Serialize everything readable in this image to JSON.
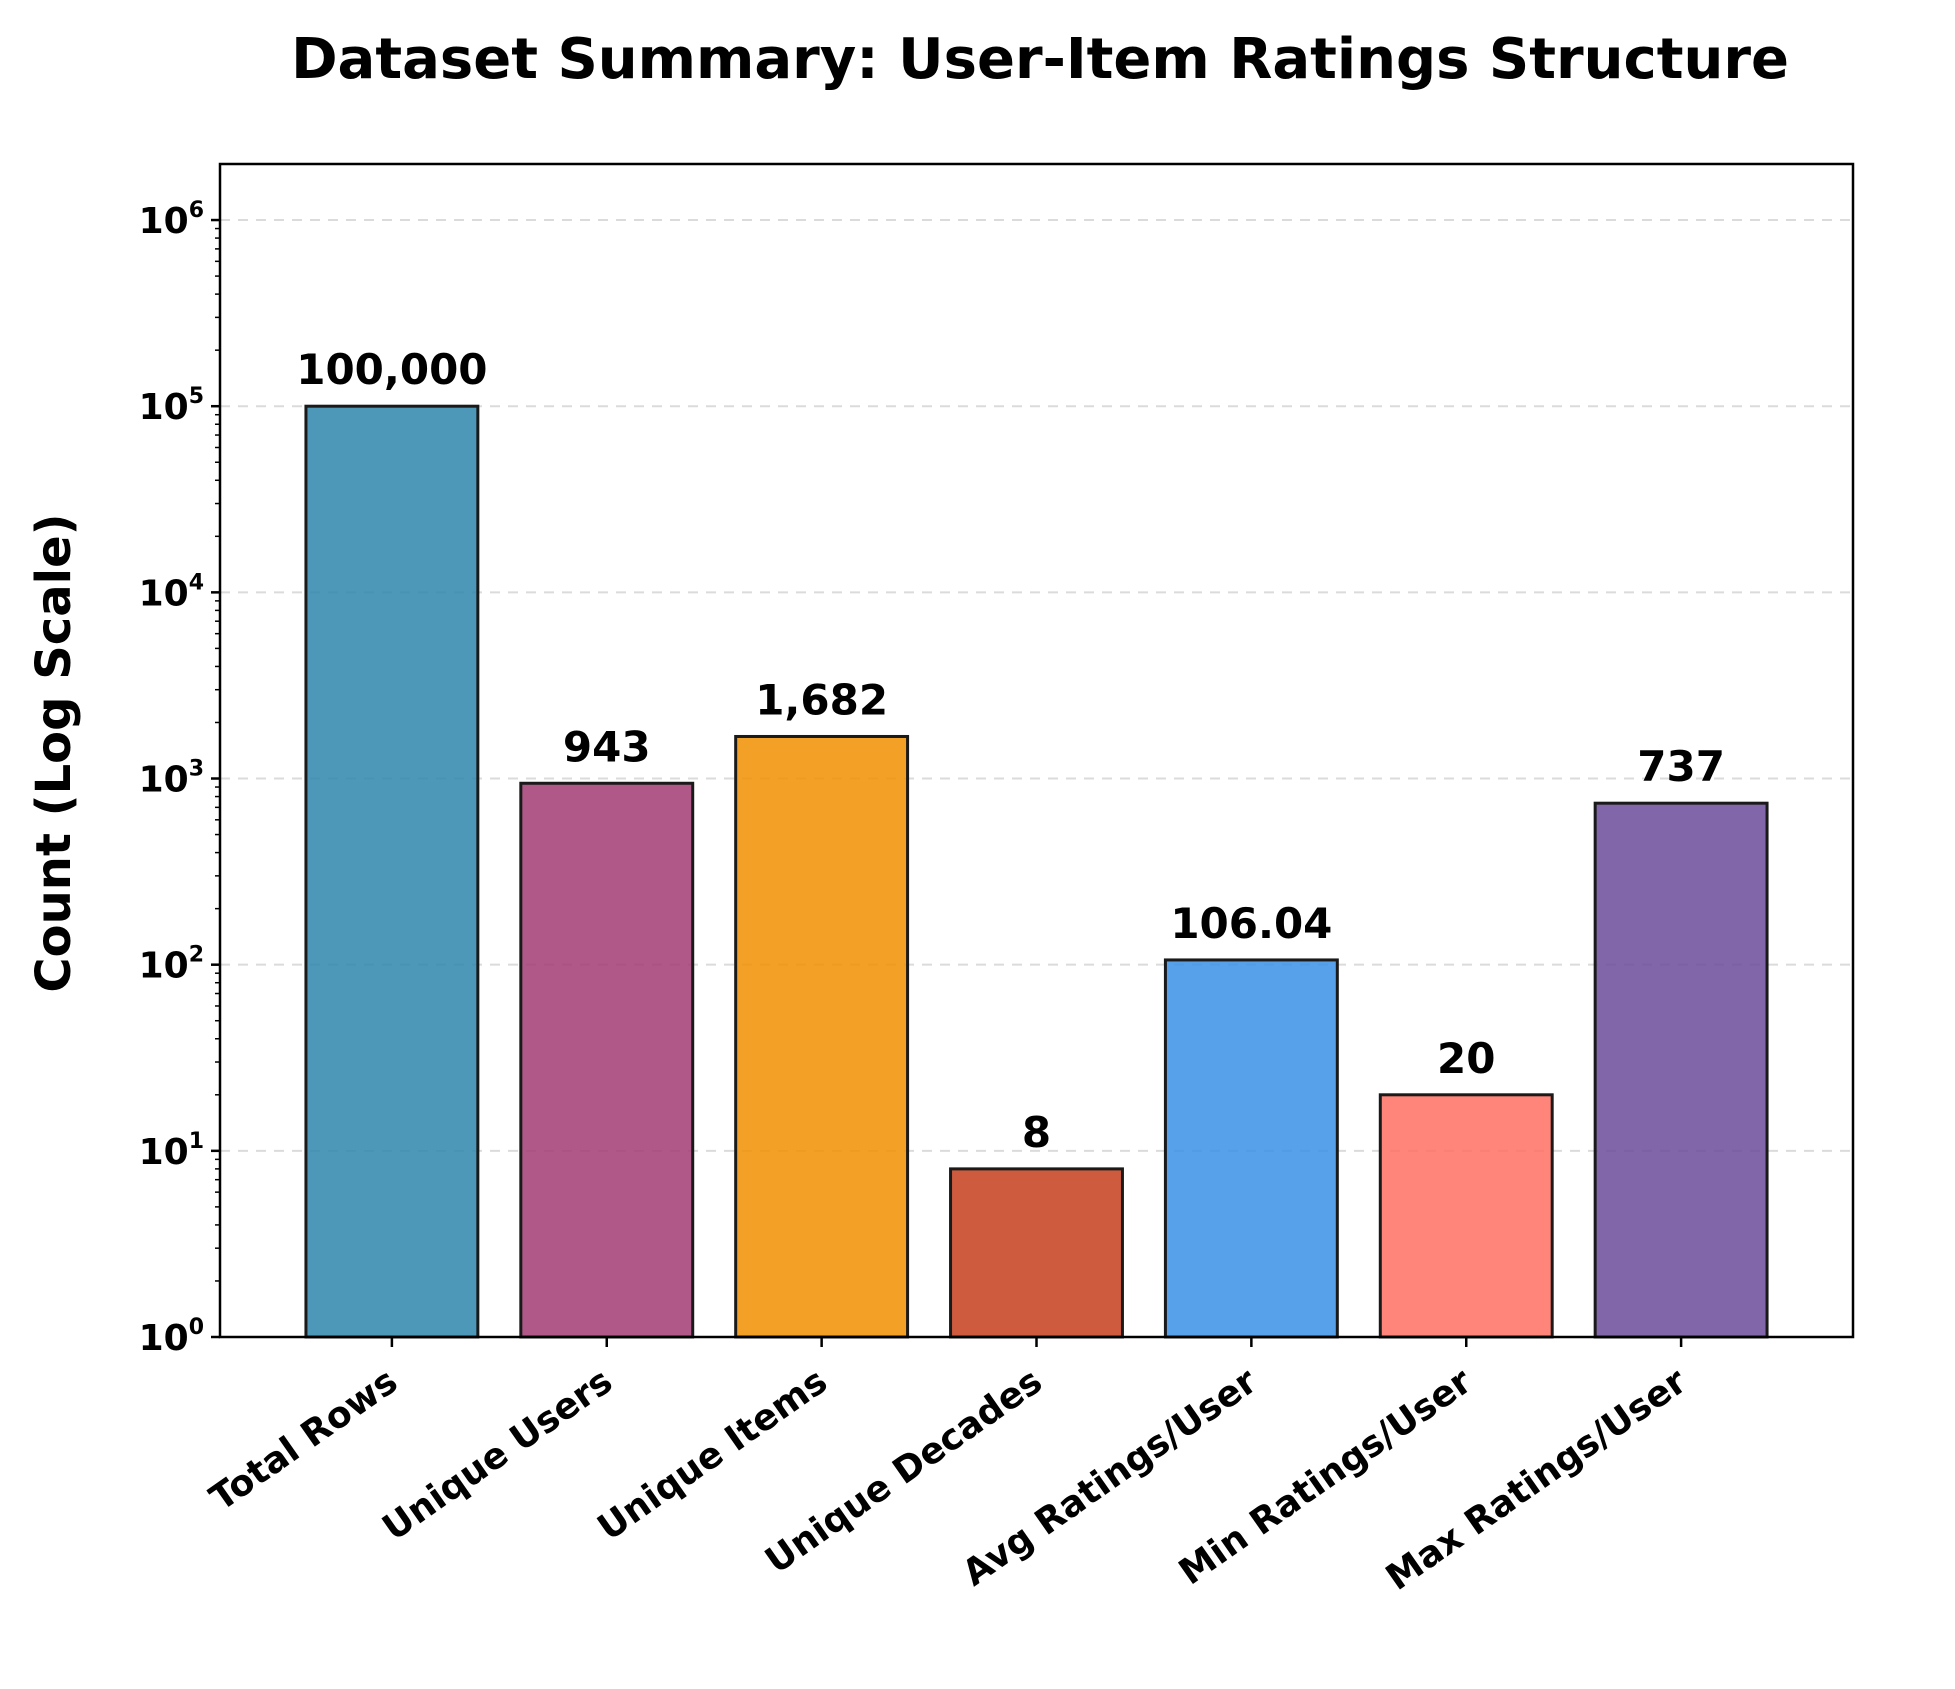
{
  "chart_data": {
    "type": "bar",
    "title": "Dataset Summary: User-Item Ratings Structure",
    "xlabel": "",
    "ylabel": "Count (Log Scale)",
    "yscale": "log",
    "ylim": [
      1,
      2000000
    ],
    "grid": "y, dashed",
    "categories": [
      "Total Rows",
      "Unique Users",
      "Unique Items",
      "Unique Decades",
      "Avg Ratings/User",
      "Min Ratings/User",
      "Max Ratings/User"
    ],
    "values": [
      100000,
      943,
      1682,
      8,
      106.04,
      20,
      737
    ],
    "value_labels": [
      "100,000",
      "943",
      "1,682",
      "8",
      "106.04",
      "20",
      "737"
    ],
    "colors": [
      "#2E86AB",
      "#A23B72",
      "#F18F01",
      "#C73E1D",
      "#3A8FE6",
      "#FF6F61",
      "#6B4C9A"
    ],
    "yticks": [
      {
        "value": 1,
        "base": "10",
        "exp": "0"
      },
      {
        "value": 10,
        "base": "10",
        "exp": "1"
      },
      {
        "value": 100,
        "base": "10",
        "exp": "2"
      },
      {
        "value": 1000,
        "base": "10",
        "exp": "3"
      },
      {
        "value": 10000,
        "base": "10",
        "exp": "4"
      },
      {
        "value": 100000,
        "base": "10",
        "exp": "5"
      },
      {
        "value": 1000000,
        "base": "10",
        "exp": "6"
      }
    ]
  }
}
